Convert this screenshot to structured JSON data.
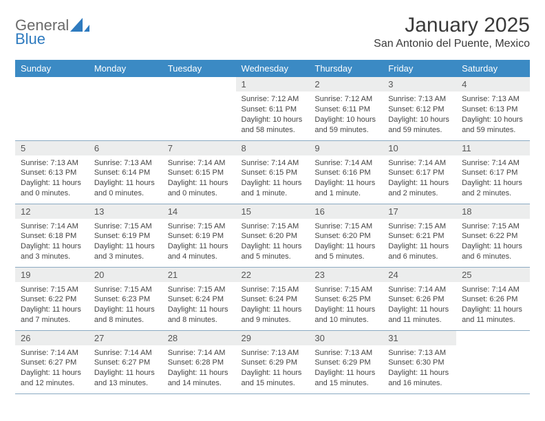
{
  "logo": {
    "text1": "General",
    "text2": "Blue"
  },
  "title": {
    "month": "January 2025",
    "location": "San Antonio del Puente, Mexico"
  },
  "colors": {
    "header_bg": "#3b8ac4",
    "header_text": "#ffffff",
    "daynum_bg": "#eceded",
    "border": "#8aa9c2",
    "logo_blue": "#2f7bbf",
    "page_bg": "#ffffff",
    "text": "#333333"
  },
  "columns": [
    "Sunday",
    "Monday",
    "Tuesday",
    "Wednesday",
    "Thursday",
    "Friday",
    "Saturday"
  ],
  "weeks": [
    [
      null,
      null,
      null,
      {
        "n": "1",
        "sunrise": "7:12 AM",
        "sunset": "6:11 PM",
        "day_h": "10",
        "day_m": "58"
      },
      {
        "n": "2",
        "sunrise": "7:12 AM",
        "sunset": "6:11 PM",
        "day_h": "10",
        "day_m": "59"
      },
      {
        "n": "3",
        "sunrise": "7:13 AM",
        "sunset": "6:12 PM",
        "day_h": "10",
        "day_m": "59"
      },
      {
        "n": "4",
        "sunrise": "7:13 AM",
        "sunset": "6:13 PM",
        "day_h": "10",
        "day_m": "59"
      }
    ],
    [
      {
        "n": "5",
        "sunrise": "7:13 AM",
        "sunset": "6:13 PM",
        "day_h": "11",
        "day_m": "0"
      },
      {
        "n": "6",
        "sunrise": "7:13 AM",
        "sunset": "6:14 PM",
        "day_h": "11",
        "day_m": "0"
      },
      {
        "n": "7",
        "sunrise": "7:14 AM",
        "sunset": "6:15 PM",
        "day_h": "11",
        "day_m": "0"
      },
      {
        "n": "8",
        "sunrise": "7:14 AM",
        "sunset": "6:15 PM",
        "day_h": "11",
        "day_m": "1"
      },
      {
        "n": "9",
        "sunrise": "7:14 AM",
        "sunset": "6:16 PM",
        "day_h": "11",
        "day_m": "1"
      },
      {
        "n": "10",
        "sunrise": "7:14 AM",
        "sunset": "6:17 PM",
        "day_h": "11",
        "day_m": "2"
      },
      {
        "n": "11",
        "sunrise": "7:14 AM",
        "sunset": "6:17 PM",
        "day_h": "11",
        "day_m": "2"
      }
    ],
    [
      {
        "n": "12",
        "sunrise": "7:14 AM",
        "sunset": "6:18 PM",
        "day_h": "11",
        "day_m": "3"
      },
      {
        "n": "13",
        "sunrise": "7:15 AM",
        "sunset": "6:19 PM",
        "day_h": "11",
        "day_m": "3"
      },
      {
        "n": "14",
        "sunrise": "7:15 AM",
        "sunset": "6:19 PM",
        "day_h": "11",
        "day_m": "4"
      },
      {
        "n": "15",
        "sunrise": "7:15 AM",
        "sunset": "6:20 PM",
        "day_h": "11",
        "day_m": "5"
      },
      {
        "n": "16",
        "sunrise": "7:15 AM",
        "sunset": "6:20 PM",
        "day_h": "11",
        "day_m": "5"
      },
      {
        "n": "17",
        "sunrise": "7:15 AM",
        "sunset": "6:21 PM",
        "day_h": "11",
        "day_m": "6"
      },
      {
        "n": "18",
        "sunrise": "7:15 AM",
        "sunset": "6:22 PM",
        "day_h": "11",
        "day_m": "6"
      }
    ],
    [
      {
        "n": "19",
        "sunrise": "7:15 AM",
        "sunset": "6:22 PM",
        "day_h": "11",
        "day_m": "7"
      },
      {
        "n": "20",
        "sunrise": "7:15 AM",
        "sunset": "6:23 PM",
        "day_h": "11",
        "day_m": "8"
      },
      {
        "n": "21",
        "sunrise": "7:15 AM",
        "sunset": "6:24 PM",
        "day_h": "11",
        "day_m": "8"
      },
      {
        "n": "22",
        "sunrise": "7:15 AM",
        "sunset": "6:24 PM",
        "day_h": "11",
        "day_m": "9"
      },
      {
        "n": "23",
        "sunrise": "7:15 AM",
        "sunset": "6:25 PM",
        "day_h": "11",
        "day_m": "10"
      },
      {
        "n": "24",
        "sunrise": "7:14 AM",
        "sunset": "6:26 PM",
        "day_h": "11",
        "day_m": "11"
      },
      {
        "n": "25",
        "sunrise": "7:14 AM",
        "sunset": "6:26 PM",
        "day_h": "11",
        "day_m": "11"
      }
    ],
    [
      {
        "n": "26",
        "sunrise": "7:14 AM",
        "sunset": "6:27 PM",
        "day_h": "11",
        "day_m": "12"
      },
      {
        "n": "27",
        "sunrise": "7:14 AM",
        "sunset": "6:27 PM",
        "day_h": "11",
        "day_m": "13"
      },
      {
        "n": "28",
        "sunrise": "7:14 AM",
        "sunset": "6:28 PM",
        "day_h": "11",
        "day_m": "14"
      },
      {
        "n": "29",
        "sunrise": "7:13 AM",
        "sunset": "6:29 PM",
        "day_h": "11",
        "day_m": "15"
      },
      {
        "n": "30",
        "sunrise": "7:13 AM",
        "sunset": "6:29 PM",
        "day_h": "11",
        "day_m": "15"
      },
      {
        "n": "31",
        "sunrise": "7:13 AM",
        "sunset": "6:30 PM",
        "day_h": "11",
        "day_m": "16"
      },
      null
    ]
  ],
  "labels": {
    "sunrise": "Sunrise:",
    "sunset": "Sunset:",
    "daylight": "Daylight:",
    "hours": "hours",
    "and": "and",
    "minute": "minute.",
    "minutes": "minutes."
  }
}
